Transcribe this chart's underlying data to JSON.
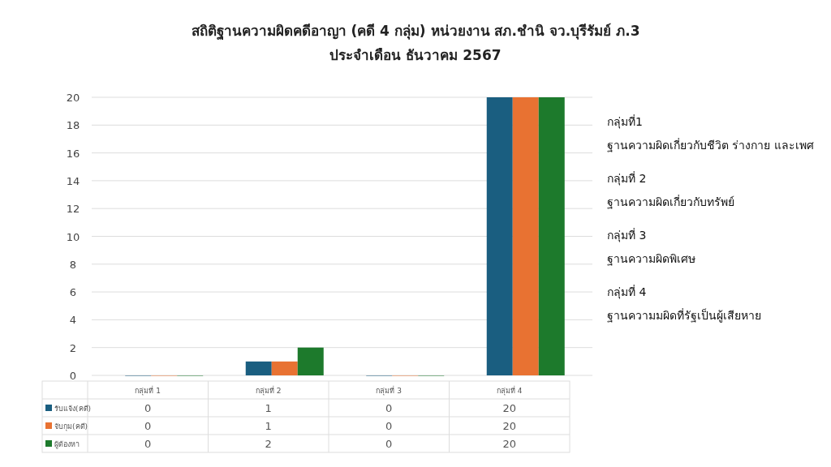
{
  "chart_data": {
    "type": "bar",
    "title": "สถิติฐานความผิดคดีอาญา (คดี 4 กลุ่ม) หน่วยงาน สภ.ชำนิ จว.บุรีรัมย์ ภ.3",
    "subtitle": "ประจำเดือน ธันวาคม 2567",
    "categories": [
      "กลุ่มที่ 1",
      "กลุ่มที่ 2",
      "กลุ่มที่ 3",
      "กลุ่มที่ 4"
    ],
    "series": [
      {
        "name": "รับแจ้ง(คดี)",
        "color": "#1a5e80",
        "values": [
          0,
          1,
          0,
          20
        ]
      },
      {
        "name": "จับกุม(คดี)",
        "color": "#e87232",
        "values": [
          0,
          1,
          0,
          20
        ]
      },
      {
        "name": "ผู้ต้องหา",
        "color": "#1d7a2c",
        "values": [
          0,
          2,
          0,
          20
        ]
      }
    ],
    "ylim": [
      0,
      20
    ],
    "yticks": [
      0,
      2,
      4,
      6,
      8,
      10,
      12,
      14,
      16,
      18,
      20
    ],
    "grid": "y",
    "legend": "bottom",
    "data_labels": true,
    "annotations": [
      "กลุ่มที่1",
      "ฐานความผิดเกี่ยวกับชีวิต ร่างกาย และเพศ",
      "กลุ่มที่ 2",
      "ฐานความผิดเกี่ยวกับทรัพย์",
      "กลุ่มที่ 3",
      "ฐานความผิดพิเศษ",
      "กลุ่มที่ 4",
      "ฐานความมผิดที่รัฐเป็นผู้เสียหาย"
    ]
  }
}
